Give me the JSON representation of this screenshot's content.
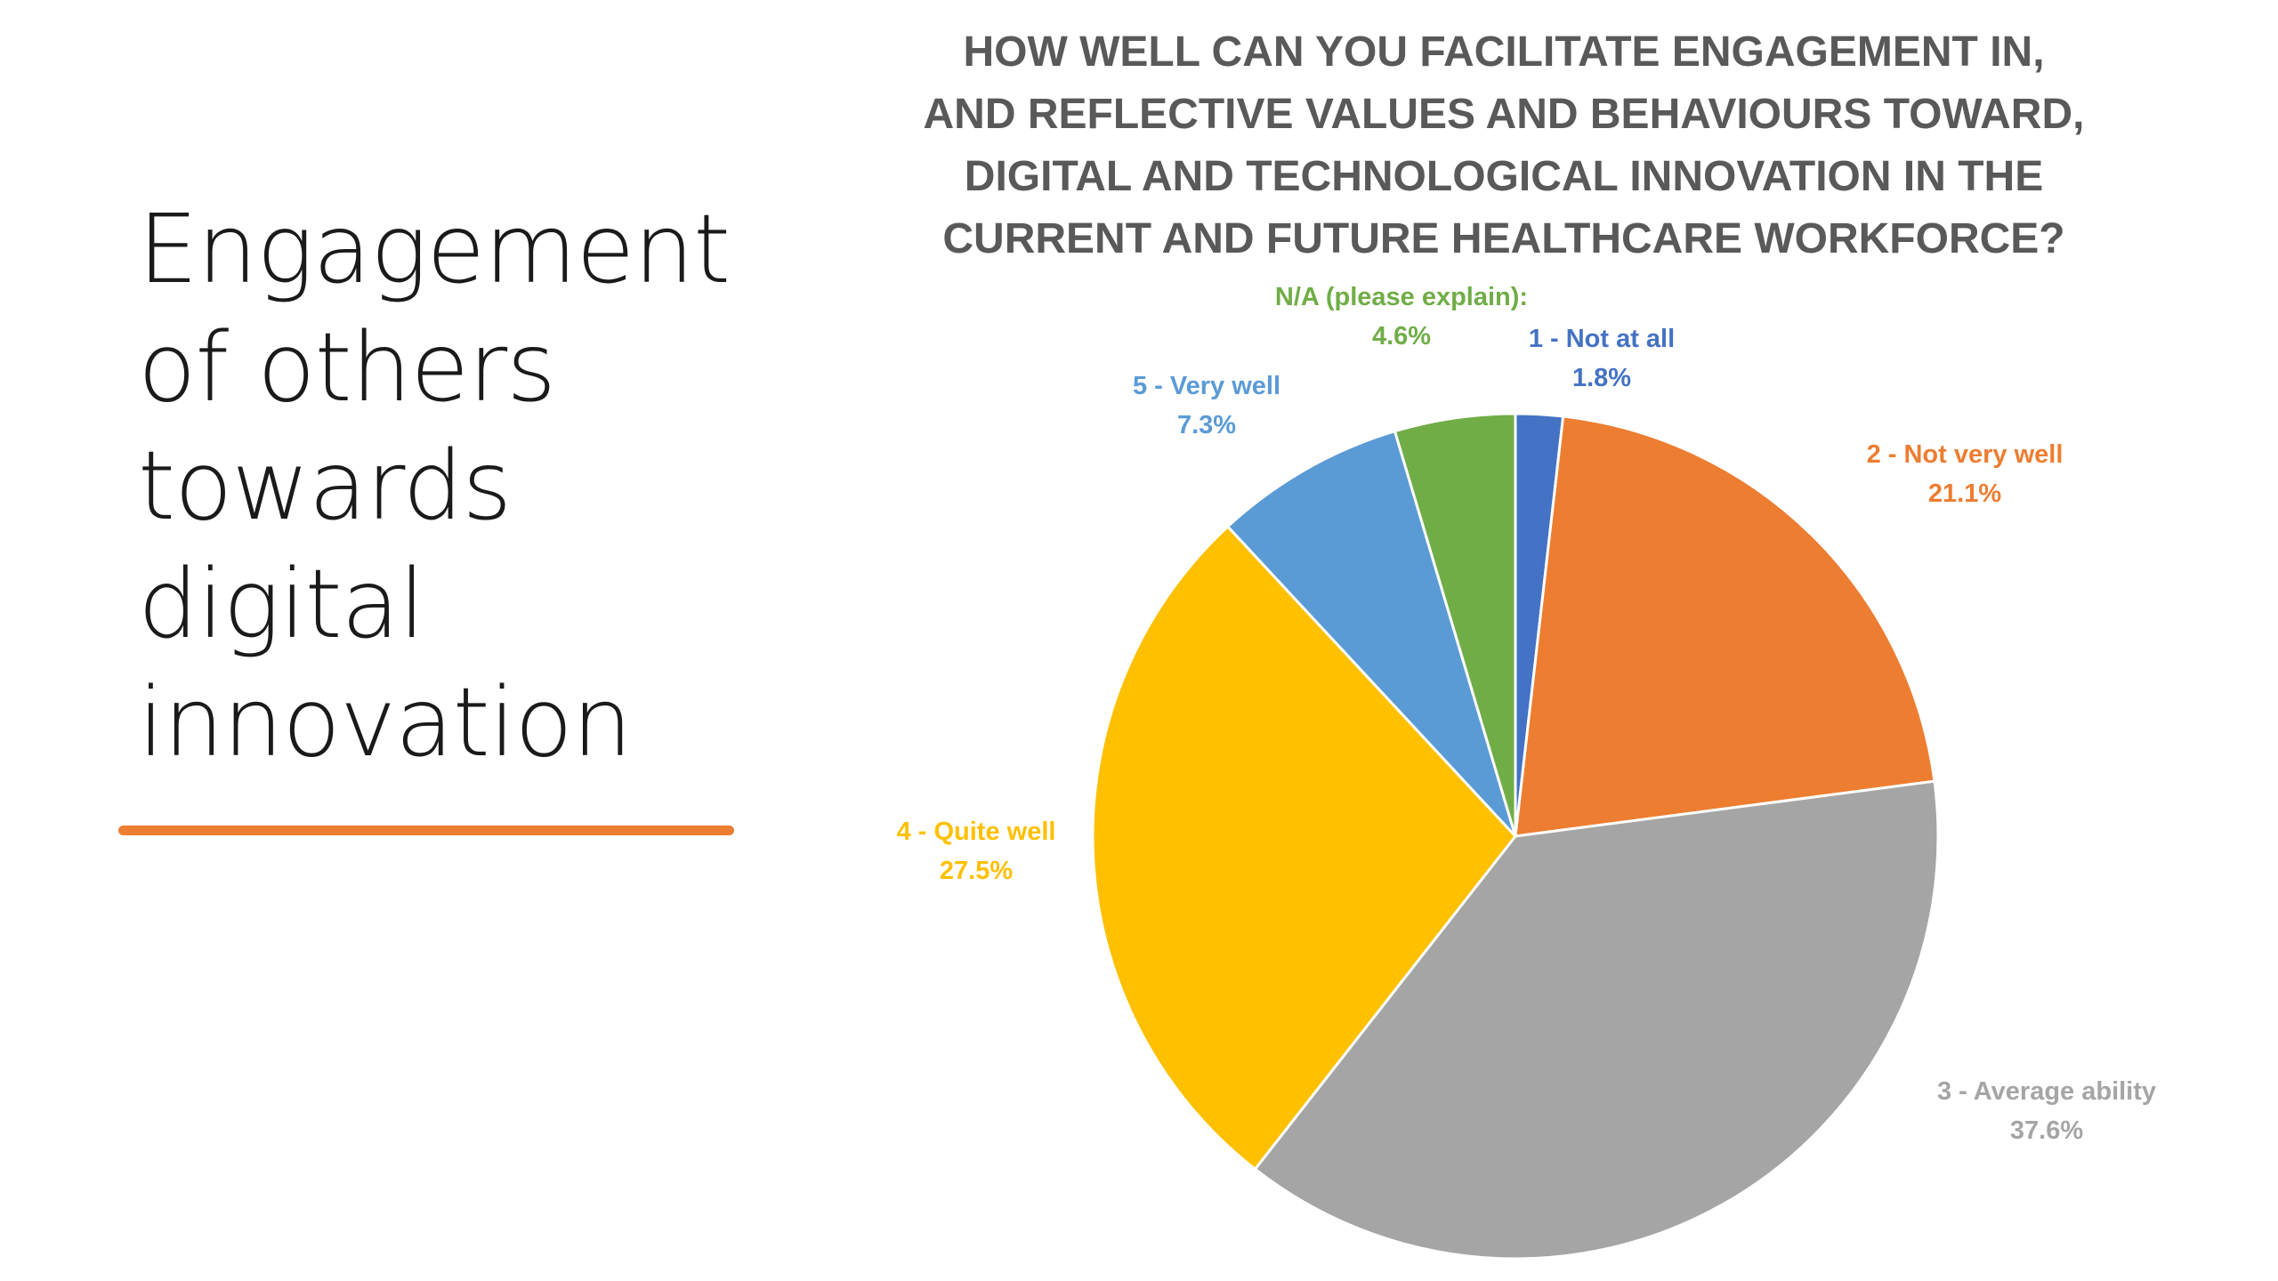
{
  "slide": {
    "title_lines": [
      "Engagement",
      "of others",
      "towards",
      "digital",
      "innovation"
    ],
    "accent_color": "#ED7D31"
  },
  "chart_data": {
    "type": "pie",
    "title_lines": [
      "HOW WELL CAN YOU FACILITATE ENGAGEMENT IN,",
      "AND REFLECTIVE VALUES AND BEHAVIOURS TOWARD,",
      "DIGITAL AND TECHNOLOGICAL INNOVATION IN THE",
      "CURRENT AND FUTURE HEALTHCARE WORKFORCE?"
    ],
    "title_color": "#595959",
    "legend": "none",
    "start": "top",
    "direction": "clockwise",
    "slices": [
      {
        "label": "1 - Not at all",
        "value": 1.8,
        "pct_text": "1.8%",
        "color": "#4472C4"
      },
      {
        "label": "2 - Not very well",
        "value": 21.1,
        "pct_text": "21.1%",
        "color": "#ED7D31"
      },
      {
        "label": "3 - Average ability",
        "value": 37.6,
        "pct_text": "37.6%",
        "color": "#A5A5A5"
      },
      {
        "label": "4 - Quite well",
        "value": 27.5,
        "pct_text": "27.5%",
        "color": "#FFC000"
      },
      {
        "label": "5 - Very well",
        "value": 7.3,
        "pct_text": "7.3%",
        "color": "#5B9BD5"
      },
      {
        "label": "N/A (please explain):",
        "value": 4.6,
        "pct_text": "4.6%",
        "color": "#70AD47"
      }
    ]
  }
}
